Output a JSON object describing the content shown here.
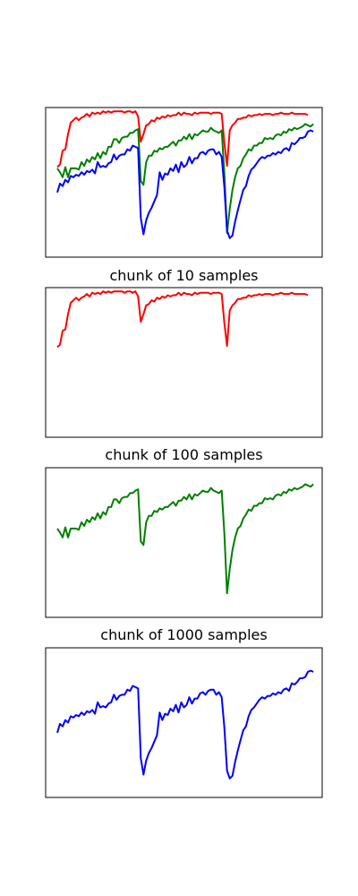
{
  "chart_data": [
    {
      "type": "line",
      "title": "",
      "xlabel": "",
      "ylabel": "",
      "xticks": false,
      "yticks": false,
      "grid": false,
      "xlim": [
        -4.3,
        98.3
      ],
      "ylim": [
        -1.15,
        0.03
      ],
      "series": [
        {
          "color": "#ff0000",
          "values": [
            -0.44,
            -0.42,
            -0.31,
            -0.3,
            -0.18,
            -0.09,
            -0.07,
            -0.05,
            -0.07,
            -0.05,
            -0.04,
            -0.02,
            -0.04,
            -0.01,
            -0.02,
            -0.01,
            -0.02,
            0.0,
            -0.01,
            0.0,
            -0.01,
            0.0,
            0.0,
            0.0,
            0.0,
            -0.01,
            0.0,
            0.0,
            -0.01,
            0.0,
            -0.04,
            -0.24,
            -0.18,
            -0.11,
            -0.1,
            -0.07,
            -0.08,
            -0.05,
            -0.06,
            -0.04,
            -0.05,
            -0.03,
            -0.04,
            -0.03,
            -0.03,
            -0.01,
            -0.03,
            -0.01,
            -0.02,
            -0.02,
            -0.03,
            -0.01,
            -0.02,
            -0.01,
            -0.01,
            -0.01,
            -0.01,
            -0.02,
            -0.01,
            -0.01,
            -0.01,
            -0.02,
            -0.25,
            -0.43,
            -0.15,
            -0.11,
            -0.09,
            -0.06,
            -0.06,
            -0.05,
            -0.05,
            -0.03,
            -0.04,
            -0.03,
            -0.03,
            -0.02,
            -0.03,
            -0.02,
            -0.02,
            -0.02,
            -0.03,
            -0.02,
            -0.02,
            -0.01,
            -0.02,
            -0.02,
            -0.02,
            -0.01,
            -0.02,
            -0.02,
            -0.02,
            -0.02,
            -0.02,
            -0.03
          ]
        },
        {
          "color": "#008000",
          "values": [
            -0.45,
            -0.48,
            -0.52,
            -0.44,
            -0.52,
            -0.45,
            -0.45,
            -0.45,
            -0.46,
            -0.4,
            -0.43,
            -0.38,
            -0.4,
            -0.36,
            -0.38,
            -0.33,
            -0.37,
            -0.32,
            -0.34,
            -0.28,
            -0.28,
            -0.22,
            -0.22,
            -0.25,
            -0.21,
            -0.2,
            -0.2,
            -0.17,
            -0.17,
            -0.15,
            -0.14,
            -0.55,
            -0.58,
            -0.4,
            -0.35,
            -0.35,
            -0.31,
            -0.32,
            -0.29,
            -0.3,
            -0.28,
            -0.28,
            -0.26,
            -0.24,
            -0.27,
            -0.23,
            -0.23,
            -0.2,
            -0.22,
            -0.18,
            -0.22,
            -0.18,
            -0.19,
            -0.17,
            -0.15,
            -0.16,
            -0.16,
            -0.13,
            -0.15,
            -0.16,
            -0.17,
            -0.15,
            -0.49,
            -0.96,
            -0.77,
            -0.62,
            -0.52,
            -0.45,
            -0.43,
            -0.37,
            -0.34,
            -0.3,
            -0.31,
            -0.27,
            -0.27,
            -0.25,
            -0.25,
            -0.21,
            -0.22,
            -0.21,
            -0.22,
            -0.19,
            -0.18,
            -0.19,
            -0.16,
            -0.17,
            -0.14,
            -0.15,
            -0.13,
            -0.14,
            -0.13,
            -0.12,
            -0.1,
            -0.11,
            -0.12,
            -0.1
          ]
        },
        {
          "color": "#0000ff",
          "values": [
            -0.64,
            -0.57,
            -0.59,
            -0.54,
            -0.56,
            -0.51,
            -0.52,
            -0.5,
            -0.51,
            -0.48,
            -0.5,
            -0.47,
            -0.48,
            -0.46,
            -0.49,
            -0.4,
            -0.44,
            -0.43,
            -0.44,
            -0.41,
            -0.4,
            -0.34,
            -0.38,
            -0.35,
            -0.34,
            -0.34,
            -0.3,
            -0.31,
            -0.27,
            -0.28,
            -0.29,
            -0.84,
            -0.97,
            -0.86,
            -0.8,
            -0.76,
            -0.71,
            -0.66,
            -0.48,
            -0.54,
            -0.49,
            -0.5,
            -0.45,
            -0.47,
            -0.42,
            -0.48,
            -0.4,
            -0.44,
            -0.42,
            -0.36,
            -0.41,
            -0.37,
            -0.37,
            -0.33,
            -0.32,
            -0.34,
            -0.31,
            -0.3,
            -0.3,
            -0.34,
            -0.32,
            -0.36,
            -0.6,
            -0.94,
            -1.0,
            -0.98,
            -0.87,
            -0.78,
            -0.7,
            -0.62,
            -0.59,
            -0.51,
            -0.46,
            -0.44,
            -0.41,
            -0.38,
            -0.36,
            -0.37,
            -0.35,
            -0.35,
            -0.33,
            -0.34,
            -0.32,
            -0.33,
            -0.3,
            -0.29,
            -0.31,
            -0.25,
            -0.26,
            -0.24,
            -0.21,
            -0.21,
            -0.2,
            -0.16,
            -0.15,
            -0.16
          ]
        }
      ]
    },
    {
      "type": "line",
      "title": "chunk of 10 samples",
      "xlabel": "",
      "ylabel": "",
      "xticks": false,
      "yticks": false,
      "grid": false,
      "xlim": [
        -4.3,
        98.3
      ],
      "ylim": [
        -1.15,
        0.03
      ],
      "series": [
        {
          "color": "#ff0000",
          "values": [
            -0.44,
            -0.42,
            -0.31,
            -0.3,
            -0.18,
            -0.09,
            -0.07,
            -0.05,
            -0.07,
            -0.05,
            -0.04,
            -0.02,
            -0.04,
            -0.01,
            -0.02,
            -0.01,
            -0.02,
            0.0,
            -0.01,
            0.0,
            -0.01,
            0.0,
            0.0,
            0.0,
            0.0,
            -0.01,
            0.0,
            0.0,
            -0.01,
            0.0,
            -0.04,
            -0.24,
            -0.18,
            -0.11,
            -0.1,
            -0.07,
            -0.08,
            -0.05,
            -0.06,
            -0.04,
            -0.05,
            -0.03,
            -0.04,
            -0.03,
            -0.03,
            -0.01,
            -0.03,
            -0.01,
            -0.02,
            -0.02,
            -0.03,
            -0.01,
            -0.02,
            -0.01,
            -0.01,
            -0.01,
            -0.01,
            -0.02,
            -0.01,
            -0.01,
            -0.01,
            -0.02,
            -0.25,
            -0.43,
            -0.15,
            -0.11,
            -0.09,
            -0.06,
            -0.06,
            -0.05,
            -0.05,
            -0.03,
            -0.04,
            -0.03,
            -0.03,
            -0.02,
            -0.03,
            -0.02,
            -0.02,
            -0.02,
            -0.03,
            -0.02,
            -0.02,
            -0.01,
            -0.02,
            -0.02,
            -0.02,
            -0.01,
            -0.02,
            -0.02,
            -0.02,
            -0.02,
            -0.02,
            -0.03
          ]
        }
      ]
    },
    {
      "type": "line",
      "title": "chunk of 100 samples",
      "xlabel": "",
      "ylabel": "",
      "xticks": false,
      "yticks": false,
      "grid": false,
      "xlim": [
        -4.3,
        98.3
      ],
      "ylim": [
        -1.15,
        0.03
      ],
      "series": [
        {
          "color": "#008000",
          "values": [
            -0.45,
            -0.48,
            -0.52,
            -0.44,
            -0.52,
            -0.45,
            -0.45,
            -0.45,
            -0.46,
            -0.4,
            -0.43,
            -0.38,
            -0.4,
            -0.36,
            -0.38,
            -0.33,
            -0.37,
            -0.32,
            -0.34,
            -0.28,
            -0.28,
            -0.22,
            -0.22,
            -0.25,
            -0.21,
            -0.2,
            -0.2,
            -0.17,
            -0.17,
            -0.15,
            -0.14,
            -0.55,
            -0.58,
            -0.4,
            -0.35,
            -0.35,
            -0.31,
            -0.32,
            -0.29,
            -0.3,
            -0.28,
            -0.28,
            -0.26,
            -0.24,
            -0.27,
            -0.23,
            -0.23,
            -0.2,
            -0.22,
            -0.18,
            -0.22,
            -0.18,
            -0.19,
            -0.17,
            -0.15,
            -0.16,
            -0.16,
            -0.13,
            -0.15,
            -0.16,
            -0.17,
            -0.15,
            -0.49,
            -0.96,
            -0.77,
            -0.62,
            -0.52,
            -0.45,
            -0.43,
            -0.37,
            -0.34,
            -0.3,
            -0.31,
            -0.27,
            -0.27,
            -0.25,
            -0.25,
            -0.21,
            -0.22,
            -0.21,
            -0.22,
            -0.19,
            -0.18,
            -0.19,
            -0.16,
            -0.17,
            -0.14,
            -0.15,
            -0.13,
            -0.14,
            -0.13,
            -0.12,
            -0.1,
            -0.11,
            -0.12,
            -0.1
          ]
        }
      ]
    },
    {
      "type": "line",
      "title": "chunk of 1000 samples",
      "xlabel": "",
      "ylabel": "",
      "xticks": false,
      "yticks": false,
      "grid": false,
      "xlim": [
        -4.3,
        98.3
      ],
      "ylim": [
        -1.15,
        0.03
      ],
      "series": [
        {
          "color": "#0000ff",
          "values": [
            -0.64,
            -0.57,
            -0.59,
            -0.54,
            -0.56,
            -0.51,
            -0.52,
            -0.5,
            -0.51,
            -0.48,
            -0.5,
            -0.47,
            -0.48,
            -0.46,
            -0.49,
            -0.4,
            -0.44,
            -0.43,
            -0.44,
            -0.41,
            -0.4,
            -0.34,
            -0.38,
            -0.35,
            -0.34,
            -0.34,
            -0.3,
            -0.31,
            -0.27,
            -0.28,
            -0.29,
            -0.84,
            -0.97,
            -0.86,
            -0.8,
            -0.76,
            -0.71,
            -0.66,
            -0.48,
            -0.54,
            -0.49,
            -0.5,
            -0.45,
            -0.47,
            -0.42,
            -0.48,
            -0.4,
            -0.44,
            -0.42,
            -0.36,
            -0.41,
            -0.37,
            -0.37,
            -0.33,
            -0.32,
            -0.34,
            -0.31,
            -0.3,
            -0.3,
            -0.34,
            -0.32,
            -0.36,
            -0.6,
            -0.94,
            -1.0,
            -0.98,
            -0.87,
            -0.78,
            -0.7,
            -0.62,
            -0.59,
            -0.51,
            -0.46,
            -0.44,
            -0.41,
            -0.38,
            -0.36,
            -0.37,
            -0.35,
            -0.35,
            -0.33,
            -0.34,
            -0.32,
            -0.33,
            -0.3,
            -0.29,
            -0.31,
            -0.25,
            -0.26,
            -0.24,
            -0.21,
            -0.21,
            -0.2,
            -0.16,
            -0.15,
            -0.16
          ]
        }
      ]
    }
  ]
}
